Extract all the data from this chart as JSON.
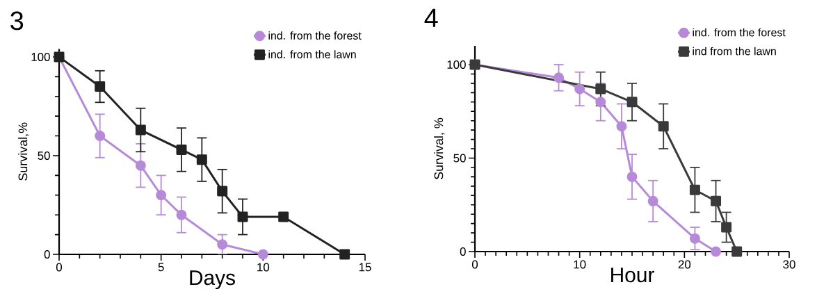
{
  "chart_data": [
    {
      "type": "line",
      "title": "3",
      "xlabel": "Days",
      "ylabel": "Survival,%",
      "xlim": [
        0,
        15
      ],
      "ylim": [
        0,
        104
      ],
      "xticks": [
        0,
        5,
        10,
        15
      ],
      "yticks": [
        0,
        50,
        100
      ],
      "grid": false,
      "legend": "top right",
      "series": [
        {
          "name": "ind. from the forest",
          "color": "#b68ad8",
          "marker": "circle",
          "line_style": "solid",
          "x": [
            0,
            2,
            4,
            5,
            6,
            8,
            10
          ],
          "values": [
            100,
            60,
            45,
            30,
            20,
            5,
            0
          ],
          "errors": [
            null,
            11,
            11,
            10,
            9,
            5,
            null
          ]
        },
        {
          "name": "ind. from the lawn",
          "color": "#222222",
          "marker": "square",
          "line_style": "solid",
          "x": [
            0,
            2,
            4,
            6,
            7,
            8,
            9,
            11,
            14
          ],
          "values": [
            100,
            85,
            63,
            53,
            48,
            32,
            19,
            19,
            0
          ],
          "errors": [
            null,
            8,
            11,
            11,
            11,
            11,
            9,
            null,
            null
          ]
        }
      ]
    },
    {
      "type": "line",
      "title": "4",
      "xlabel": "Hour",
      "ylabel": "Survival, %",
      "xlim": [
        0,
        30
      ],
      "ylim": [
        0,
        110
      ],
      "xticks": [
        0,
        10,
        20,
        30
      ],
      "yticks": [
        0,
        50,
        100
      ],
      "grid": false,
      "legend": "top right",
      "series": [
        {
          "name": "ind. from the forest",
          "color": "#b68ad8",
          "marker": "circle",
          "line_style": "solid",
          "x": [
            0,
            8,
            10,
            12,
            14,
            15,
            17,
            21,
            23
          ],
          "values": [
            100,
            93,
            87,
            80,
            67,
            40,
            27,
            7,
            0
          ],
          "errors": [
            null,
            7,
            9,
            10,
            12,
            12,
            11,
            6,
            null
          ]
        },
        {
          "name": "ind from the lawn",
          "color": "#3a3a3a",
          "marker": "square",
          "line_style": "solid",
          "x": [
            0,
            12,
            15,
            18,
            21,
            23,
            24,
            25
          ],
          "values": [
            100,
            87,
            80,
            67,
            33,
            27,
            13,
            0
          ],
          "errors": [
            null,
            9,
            10,
            12,
            12,
            11,
            8,
            null
          ]
        }
      ]
    }
  ]
}
